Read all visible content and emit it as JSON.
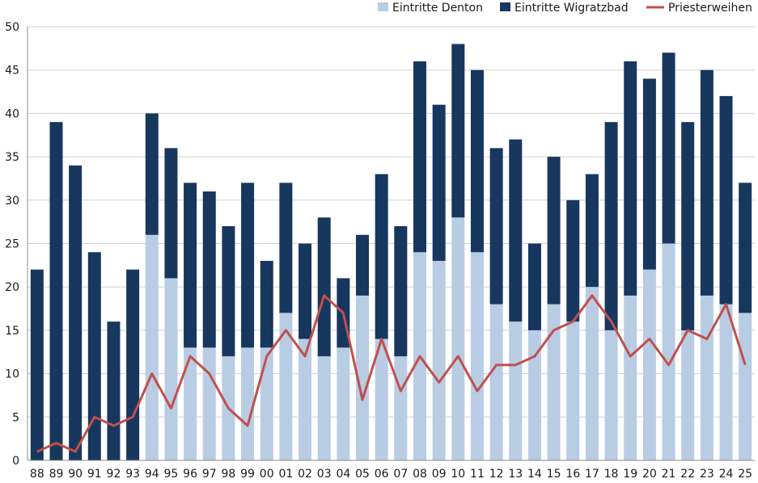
{
  "chart_data": {
    "type": "bar",
    "stacked": true,
    "title": "",
    "xlabel": "",
    "ylabel": "",
    "ylim": [
      0,
      50
    ],
    "yticks": [
      0,
      5,
      10,
      15,
      20,
      25,
      30,
      35,
      40,
      45,
      50
    ],
    "grid": true,
    "legend_position": "top-right",
    "categories": [
      "88",
      "89",
      "90",
      "91",
      "92",
      "93",
      "94",
      "95",
      "96",
      "97",
      "98",
      "99",
      "00",
      "01",
      "02",
      "03",
      "04",
      "05",
      "06",
      "07",
      "08",
      "09",
      "10",
      "11",
      "12",
      "13",
      "14",
      "15",
      "16",
      "17",
      "18",
      "19",
      "20",
      "21",
      "22",
      "23",
      "24",
      "25"
    ],
    "series": [
      {
        "name": "Eintritte Denton",
        "kind": "bar",
        "color": "#b8cce4",
        "values": [
          0,
          0,
          0,
          0,
          0,
          0,
          26,
          21,
          13,
          13,
          12,
          13,
          13,
          17,
          14,
          12,
          13,
          19,
          14,
          12,
          24,
          23,
          28,
          24,
          18,
          16,
          15,
          18,
          16,
          20,
          15,
          19,
          22,
          25,
          15,
          19,
          18,
          17
        ]
      },
      {
        "name": "Eintritte Wigratzbad",
        "kind": "bar",
        "color": "#17375e",
        "values": [
          22,
          39,
          34,
          24,
          16,
          22,
          14,
          15,
          19,
          18,
          15,
          19,
          10,
          15,
          11,
          16,
          8,
          7,
          19,
          15,
          22,
          18,
          20,
          21,
          18,
          21,
          10,
          17,
          14,
          13,
          24,
          27,
          22,
          22,
          24,
          26,
          24,
          15
        ]
      },
      {
        "name": "Priesterweihen",
        "kind": "line",
        "color": "#c0504d",
        "values": [
          1,
          2,
          1,
          5,
          4,
          5,
          10,
          6,
          12,
          10,
          6,
          4,
          12,
          15,
          12,
          19,
          17,
          7,
          14,
          8,
          12,
          9,
          12,
          8,
          11,
          11,
          12,
          15,
          16,
          19,
          16,
          12,
          14,
          11,
          15,
          14,
          18,
          11
        ]
      }
    ]
  }
}
